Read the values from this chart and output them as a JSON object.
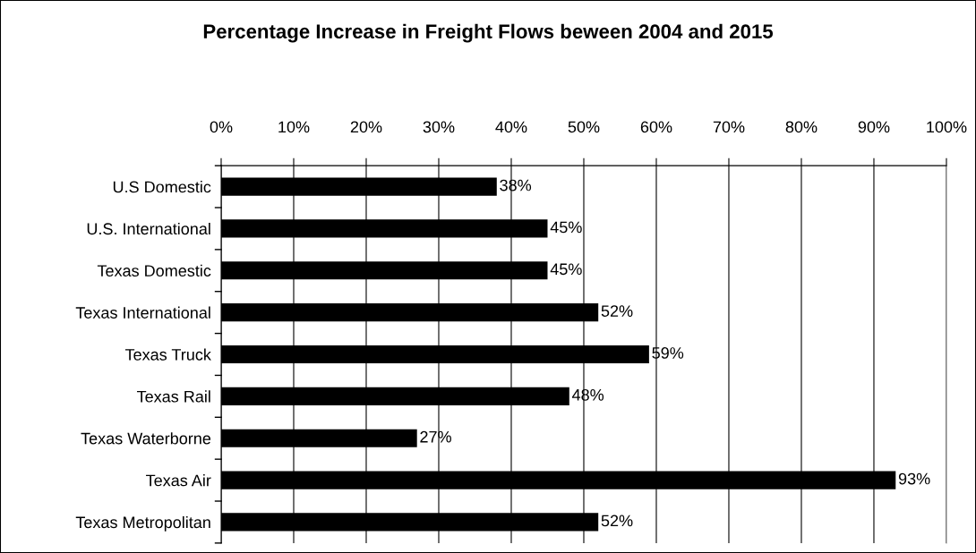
{
  "chart_data": {
    "type": "bar",
    "orientation": "horizontal",
    "title": "Percentage Increase in Freight Flows beween 2004 and 2015",
    "categories": [
      "U.S Domestic",
      "U.S. International",
      "Texas Domestic",
      "Texas International",
      "Texas Truck",
      "Texas Rail",
      "Texas Waterborne",
      "Texas Air",
      "Texas Metropolitan"
    ],
    "values": [
      38,
      45,
      45,
      52,
      59,
      48,
      27,
      93,
      52
    ],
    "value_labels": [
      "38%",
      "45%",
      "45%",
      "52%",
      "59%",
      "48%",
      "27%",
      "93%",
      "52%"
    ],
    "color": "#000000",
    "xlim": [
      0,
      100
    ],
    "xticks": [
      {
        "value": 0,
        "label": "0%"
      },
      {
        "value": 10,
        "label": "10%"
      },
      {
        "value": 20,
        "label": "20%"
      },
      {
        "value": 30,
        "label": "30%"
      },
      {
        "value": 40,
        "label": "40%"
      },
      {
        "value": 50,
        "label": "50%"
      },
      {
        "value": 60,
        "label": "60%"
      },
      {
        "value": 70,
        "label": "70%"
      },
      {
        "value": 80,
        "label": "80%"
      },
      {
        "value": 90,
        "label": "90%"
      },
      {
        "value": 100,
        "label": "100%"
      }
    ],
    "grid": "x",
    "legend": false
  }
}
